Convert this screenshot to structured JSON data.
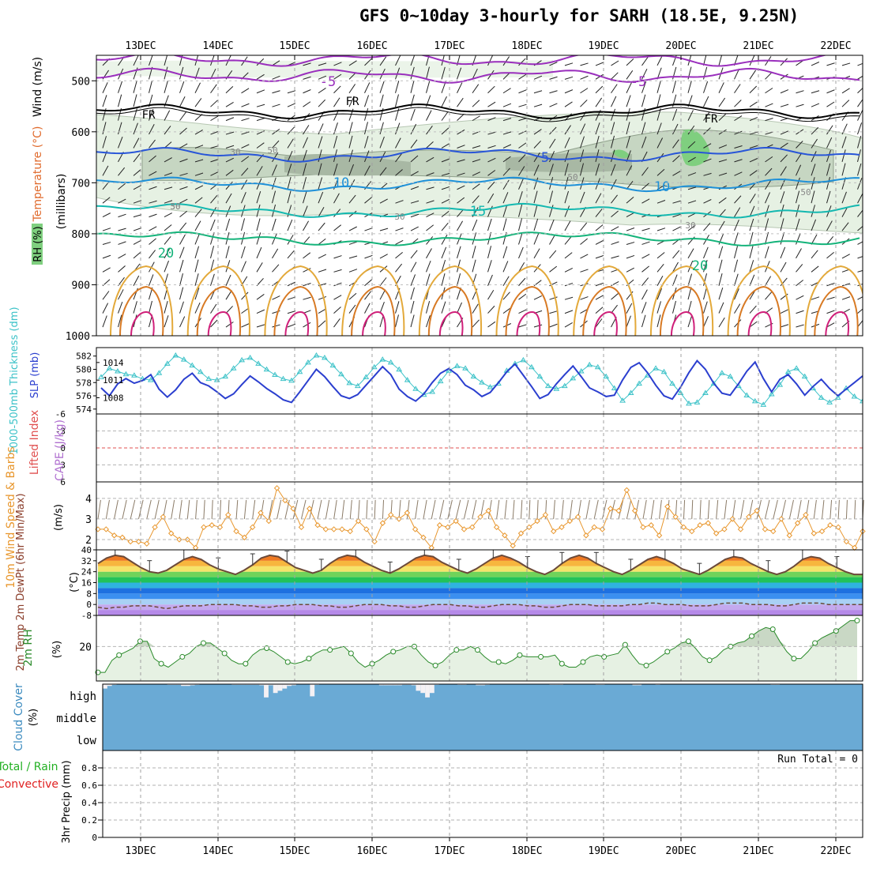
{
  "title": "GFS 0~10day 3-hourly for SARH (18.5E, 9.25N)",
  "colors": {
    "frame": "#000000",
    "grid": "#9a9a9a",
    "rh_light": "#e6f1e3",
    "rh_mid": "#c6d6c2",
    "rh_dark": "#a8b8a4",
    "rh_wet": "#7fcf7f",
    "thickness": "#2b3fcf",
    "slp": "#3cc2c8",
    "li_zero": "#e05050",
    "wind10": "#e8962c",
    "barb": "#8a7a66",
    "rh2m": "#2a8a2a",
    "rh2m_fill": "#e6f1e3",
    "cloud_bg": "#6aaad5",
    "precip_grid": "#b0b0b0"
  },
  "chart_data": [
    {
      "id": "upper-air",
      "type": "contour",
      "x_ticks": [
        "13DEC",
        "14DEC",
        "15DEC",
        "16DEC",
        "17DEC",
        "18DEC",
        "19DEC",
        "20DEC",
        "21DEC",
        "22DEC"
      ],
      "ylabel_parts": [
        "RH (%)",
        "Temperature (°C)",
        "Wind (m/s)",
        "(millibars)"
      ],
      "y_ticks": [
        500,
        600,
        700,
        800,
        900,
        1000
      ],
      "ylim": [
        450,
        1000
      ],
      "temp_contours": [
        {
          "label": "-5",
          "level_mb": 490,
          "color": "#9a2fbd"
        },
        {
          "label": "-5",
          "level_mb": 458,
          "color": "#9a2fbd"
        },
        {
          "label": "FR",
          "level_mb": 560,
          "color": "#000000"
        },
        {
          "label": "5",
          "level_mb": 645,
          "color": "#2855d8"
        },
        {
          "label": "10",
          "level_mb": 703,
          "color": "#1e90d8"
        },
        {
          "label": "15",
          "level_mb": 755,
          "color": "#13b8b0"
        },
        {
          "label": "20",
          "level_mb": 810,
          "color": "#14b37a"
        }
      ],
      "contour_labels": [
        "-5",
        "-5",
        "FR",
        "FR",
        "FR",
        "5",
        "10",
        "10",
        "15",
        "20",
        "20",
        "30",
        "50",
        "50",
        "50",
        "30",
        "30",
        "30",
        "50"
      ]
    },
    {
      "id": "thickness-slp",
      "type": "line",
      "ylabel_left": "1000-500mb Thickness (dm)",
      "ylabel_right": "SLP (mb)",
      "thickness_ticks": [
        574,
        576,
        578,
        580,
        582
      ],
      "slp_ticks": [
        1008,
        1011,
        1014
      ],
      "series": [
        {
          "name": "Thickness (dm)",
          "values": [
            577.2,
            576.0,
            577.8,
            578.6,
            577.9,
            578.3,
            579.2,
            577.0,
            575.8,
            576.9,
            578.5,
            579.4,
            578.0,
            577.5,
            576.6,
            575.6,
            576.3,
            577.7,
            579.0,
            578.1,
            577.1,
            576.3,
            575.4,
            575.0,
            576.6,
            578.3,
            580.0,
            578.9,
            577.4,
            576.0,
            575.6,
            576.2,
            577.6,
            579.0,
            580.4,
            579.2,
            577.0,
            575.9,
            575.2,
            576.3,
            578.0,
            579.4,
            580.1,
            579.2,
            577.6,
            576.9,
            575.9,
            576.5,
            578.0,
            579.6,
            580.8,
            579.1,
            577.4,
            575.6,
            576.2,
            577.8,
            579.2,
            580.5,
            578.9,
            577.2,
            576.6,
            575.9,
            576.1,
            578.4,
            580.3,
            581.0,
            579.5,
            577.6,
            576.0,
            575.5,
            577.3,
            579.5,
            581.3,
            580.0,
            577.9,
            576.4,
            576.1,
            577.8,
            579.7,
            581.1,
            578.6,
            576.6,
            578.5,
            579.2,
            577.8,
            576.1,
            577.4,
            578.5,
            577.1,
            576.0,
            577.0,
            578.0,
            579.0
          ]
        },
        {
          "name": "SLP (mb)",
          "values": [
            1011.5,
            1013.0,
            1012.5,
            1012.0,
            1011.8,
            1011.2,
            1011.0,
            1012.2,
            1013.8,
            1015.2,
            1014.5,
            1013.5,
            1012.4,
            1011.2,
            1011.0,
            1011.6,
            1013.0,
            1014.4,
            1014.8,
            1013.8,
            1012.8,
            1011.9,
            1011.2,
            1010.9,
            1012.4,
            1014.0,
            1015.2,
            1014.8,
            1013.5,
            1012.0,
            1010.5,
            1010.0,
            1011.5,
            1013.2,
            1014.5,
            1014.0,
            1012.8,
            1011.0,
            1009.5,
            1008.5,
            1009.0,
            1010.8,
            1012.6,
            1013.4,
            1013.0,
            1011.6,
            1010.6,
            1009.8,
            1010.4,
            1012.6,
            1013.8,
            1014.4,
            1013.2,
            1011.6,
            1010.0,
            1009.5,
            1010.0,
            1011.3,
            1012.5,
            1013.6,
            1013.2,
            1011.6,
            1009.6,
            1007.5,
            1008.8,
            1010.4,
            1011.8,
            1013.0,
            1012.4,
            1010.4,
            1008.8,
            1007.0,
            1007.2,
            1008.8,
            1010.4,
            1012.2,
            1011.6,
            1010.0,
            1008.4,
            1007.4,
            1006.8,
            1008.6,
            1010.2,
            1012.4,
            1013.0,
            1011.6,
            1009.6,
            1008.0,
            1007.2,
            1008.0,
            1009.6,
            1008.2,
            1007.4
          ]
        }
      ]
    },
    {
      "id": "stability",
      "type": "line",
      "ylabel_left": "Lifted Index",
      "ylabel_right": "CAPE (J/kg)",
      "y_ticks": [
        "-6",
        "-3",
        "0",
        "3",
        "6"
      ],
      "ylim": [
        -6,
        6
      ],
      "series": []
    },
    {
      "id": "wind10m",
      "type": "line",
      "ylabel": "10m Wind Speed & Barbs",
      "units": "(m/s)",
      "y_ticks": [
        2,
        3,
        4
      ],
      "ylim": [
        1.5,
        4.8
      ],
      "series": [
        {
          "name": "10m Wind Speed",
          "values": [
            2.5,
            2.5,
            2.2,
            2.1,
            1.9,
            1.9,
            1.8,
            2.6,
            3.1,
            2.3,
            2.0,
            2.0,
            1.6,
            2.6,
            2.7,
            2.6,
            3.2,
            2.4,
            2.1,
            2.6,
            3.3,
            2.9,
            4.5,
            3.9,
            3.5,
            2.6,
            3.5,
            2.7,
            2.5,
            2.5,
            2.5,
            2.4,
            2.9,
            2.5,
            1.9,
            2.8,
            3.2,
            3.0,
            3.3,
            2.5,
            2.1,
            1.6,
            2.7,
            2.6,
            2.9,
            2.5,
            2.6,
            3.1,
            3.4,
            2.6,
            2.2,
            1.7,
            2.3,
            2.6,
            2.9,
            3.2,
            2.4,
            2.6,
            2.9,
            3.1,
            2.2,
            2.6,
            2.5,
            3.5,
            3.4,
            4.4,
            3.4,
            2.6,
            2.7,
            2.2,
            3.6,
            3.1,
            2.6,
            2.4,
            2.7,
            2.8,
            2.3,
            2.5,
            3.0,
            2.5,
            3.1,
            3.4,
            2.5,
            2.4,
            3.0,
            2.2,
            2.8,
            3.2,
            2.3,
            2.4,
            2.7,
            2.6,
            1.9,
            1.6,
            2.4
          ]
        }
      ]
    },
    {
      "id": "temp2m",
      "type": "area",
      "ylabel": "2m Temp 2m DewPt (6hr Min/Max)",
      "units": "(°C)",
      "y_ticks": [
        -8,
        0,
        8,
        16,
        24,
        32,
        40
      ],
      "ylim": [
        -8,
        40
      ],
      "series": [
        {
          "name": "2m Temp",
          "values": [
            30,
            34,
            36,
            35,
            31,
            27,
            24,
            23,
            25,
            29,
            33,
            35,
            33,
            29,
            26,
            24,
            22,
            25,
            29,
            34,
            36,
            35,
            31,
            27,
            25,
            23,
            25,
            30,
            34,
            36,
            35,
            31,
            28,
            25,
            23,
            26,
            30,
            34,
            36,
            35,
            31,
            28,
            25,
            23,
            26,
            30,
            34,
            36,
            34,
            31,
            27,
            24,
            22,
            25,
            30,
            34,
            36,
            34,
            30,
            27,
            24,
            22,
            25,
            29,
            33,
            35,
            33,
            30,
            26,
            24,
            22,
            25,
            29,
            33,
            35,
            34,
            30,
            27,
            24,
            22,
            24,
            28,
            33,
            35,
            34,
            30,
            27,
            24,
            22,
            22
          ]
        },
        {
          "name": "2m DewPt",
          "values": [
            -2,
            -3,
            -2,
            -2,
            -1,
            -1,
            -1,
            -2,
            -3,
            -2,
            -1,
            -1,
            -1,
            0,
            0,
            0,
            0,
            -1,
            -1,
            -2,
            -2,
            -1,
            -1,
            0,
            0,
            0,
            -1,
            -1,
            -2,
            -2,
            -1,
            0,
            0,
            0,
            -1,
            -1,
            -2,
            -2,
            -1,
            0,
            0,
            0,
            -1,
            -1,
            -2,
            -2,
            -1,
            0,
            0,
            0,
            -1,
            -1,
            -2,
            -2,
            -1,
            0,
            0,
            0,
            -1,
            -1,
            -1,
            -1,
            0,
            0,
            1,
            1,
            0,
            0,
            0,
            -1,
            -1,
            -1,
            0,
            1,
            1,
            1,
            0,
            0,
            0,
            -1,
            -1,
            0,
            1,
            1,
            1,
            0,
            0,
            0,
            0,
            0
          ]
        }
      ]
    },
    {
      "id": "rh2m",
      "type": "area",
      "ylabel": "2m RH",
      "units": "(%)",
      "y_ticks": [
        20
      ],
      "ylim": [
        0,
        38
      ],
      "series": [
        {
          "name": "2m RH",
          "values": [
            5,
            5,
            12,
            15,
            17,
            19,
            23,
            23,
            13,
            10,
            8,
            11,
            14,
            16,
            20,
            22,
            22,
            19,
            16,
            12,
            10,
            10,
            15,
            18,
            19,
            17,
            14,
            11,
            10,
            11,
            13,
            16,
            18,
            18,
            19,
            20,
            16,
            11,
            8,
            10,
            12,
            15,
            17,
            18,
            20,
            20,
            15,
            11,
            9,
            11,
            15,
            18,
            18,
            20,
            18,
            14,
            11,
            11,
            10,
            12,
            15,
            14,
            14,
            14,
            14,
            15,
            10,
            8,
            8,
            11,
            14,
            15,
            14,
            15,
            16,
            21,
            15,
            10,
            9,
            11,
            14,
            17,
            19,
            22,
            23,
            19,
            14,
            12,
            14,
            18,
            20,
            22,
            23,
            26,
            29,
            31,
            30,
            23,
            17,
            13,
            13,
            17,
            22,
            25,
            27,
            29,
            32,
            35,
            35
          ]
        }
      ]
    },
    {
      "id": "cloud",
      "type": "bar",
      "ylabel": "Cloud Cover",
      "units": "(%)",
      "layer_labels": [
        "high",
        "middle",
        "low"
      ],
      "series": [
        {
          "name": "high",
          "values": [
            20,
            8,
            3,
            0,
            0,
            0,
            0,
            0,
            0,
            0,
            0,
            0,
            0,
            0,
            3,
            3,
            3,
            8,
            8,
            5,
            3,
            0,
            0,
            0,
            0,
            0,
            0,
            0,
            3,
            3,
            3,
            3,
            3,
            3,
            5,
            60,
            5,
            40,
            30,
            20,
            8,
            5,
            0,
            0,
            0,
            55,
            3,
            0,
            0,
            0,
            0,
            0,
            0,
            0,
            0,
            0,
            0,
            0,
            0,
            0,
            5,
            5,
            5,
            5,
            5,
            3,
            3,
            5,
            30,
            40,
            60,
            40,
            3,
            0,
            0,
            0,
            0,
            3,
            3,
            0,
            0,
            5,
            5,
            3,
            0,
            0,
            0,
            0,
            0,
            0,
            0,
            0,
            0,
            0,
            0,
            0,
            0,
            3,
            3,
            3,
            0,
            0,
            0,
            0,
            0,
            0,
            0,
            3,
            3,
            0,
            0,
            0,
            0,
            0,
            0,
            5,
            5,
            0,
            0,
            0,
            3,
            0,
            0,
            0,
            0,
            0,
            0,
            0,
            0,
            0,
            0,
            0,
            0,
            0,
            0,
            0,
            0,
            0,
            0,
            0,
            0,
            0,
            0,
            0,
            0,
            3,
            3,
            0,
            0,
            0,
            0,
            0,
            0,
            0,
            0,
            0,
            0,
            0,
            0,
            0,
            0,
            0,
            0,
            0,
            0
          ]
        }
      ]
    },
    {
      "id": "precip",
      "type": "bar",
      "ylabel_parts": [
        "Total / Rain",
        "Convective",
        "3hr Precip (mm)"
      ],
      "y_ticks": [
        "0",
        "0.2",
        "0.4",
        "0.6",
        "0.8"
      ],
      "ylim": [
        0,
        1
      ],
      "annotation": "Run Total = 0",
      "x_ticks": [
        "13DEC",
        "14DEC",
        "15DEC",
        "16DEC",
        "17DEC",
        "18DEC",
        "19DEC",
        "20DEC",
        "21DEC",
        "22DEC"
      ],
      "series": [
        {
          "name": "Total / Rain",
          "values": []
        },
        {
          "name": "Convective",
          "values": []
        }
      ]
    }
  ]
}
